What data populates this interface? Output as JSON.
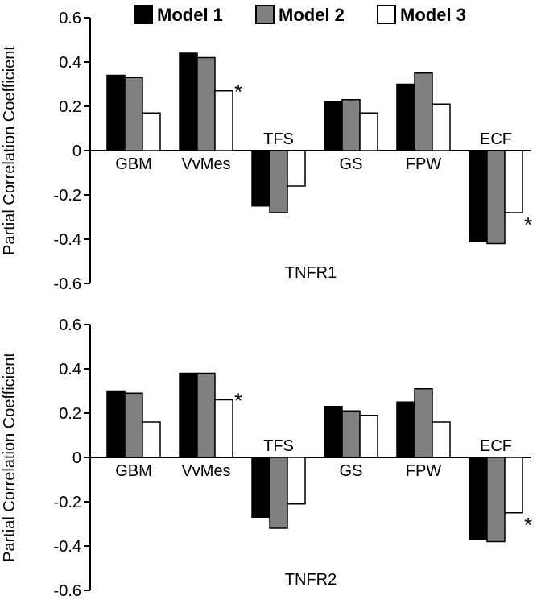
{
  "legend": {
    "items": [
      {
        "label": "Model 1",
        "color": "#000000"
      },
      {
        "label": "Model 2",
        "color": "#808080"
      },
      {
        "label": "Model 3",
        "color": "#ffffff"
      }
    ]
  },
  "chart_data": [
    {
      "type": "bar",
      "title": "TNFR1",
      "ylabel": "Partial Correlation Coefficient",
      "ylim": [
        -0.6,
        0.6
      ],
      "yticks": [
        0.6,
        0.4,
        0.2,
        0,
        -0.2,
        -0.4,
        -0.6
      ],
      "grid": false,
      "legend_position": "top",
      "categories": [
        "GBM",
        "VvMes",
        "TFS",
        "GS",
        "FPW",
        "ECF"
      ],
      "series": [
        {
          "name": "Model 1",
          "color": "#000000",
          "values": [
            0.34,
            0.44,
            -0.25,
            0.22,
            0.3,
            -0.41
          ]
        },
        {
          "name": "Model 2",
          "color": "#808080",
          "values": [
            0.33,
            0.42,
            -0.28,
            0.23,
            0.35,
            -0.42
          ]
        },
        {
          "name": "Model 3",
          "color": "#ffffff",
          "values": [
            0.17,
            0.27,
            -0.16,
            0.17,
            0.21,
            -0.28
          ]
        }
      ],
      "annotations": [
        {
          "category": "VvMes",
          "series": "Model 3",
          "text": "*"
        },
        {
          "category": "ECF",
          "series": "Model 3",
          "text": "*"
        }
      ]
    },
    {
      "type": "bar",
      "title": "TNFR2",
      "ylabel": "Partial Correlation Coefficient",
      "ylim": [
        -0.6,
        0.6
      ],
      "yticks": [
        0.6,
        0.4,
        0.2,
        0,
        -0.2,
        -0.4,
        -0.6
      ],
      "grid": false,
      "legend_position": "none",
      "categories": [
        "GBM",
        "VvMes",
        "TFS",
        "GS",
        "FPW",
        "ECF"
      ],
      "series": [
        {
          "name": "Model 1",
          "color": "#000000",
          "values": [
            0.3,
            0.38,
            -0.27,
            0.23,
            0.25,
            -0.37
          ]
        },
        {
          "name": "Model 2",
          "color": "#808080",
          "values": [
            0.29,
            0.38,
            -0.32,
            0.21,
            0.31,
            -0.38
          ]
        },
        {
          "name": "Model 3",
          "color": "#ffffff",
          "values": [
            0.16,
            0.26,
            -0.21,
            0.19,
            0.16,
            -0.25
          ]
        }
      ],
      "annotations": [
        {
          "category": "VvMes",
          "series": "Model 3",
          "text": "*"
        },
        {
          "category": "ECF",
          "series": "Model 3",
          "text": "*"
        }
      ]
    }
  ]
}
